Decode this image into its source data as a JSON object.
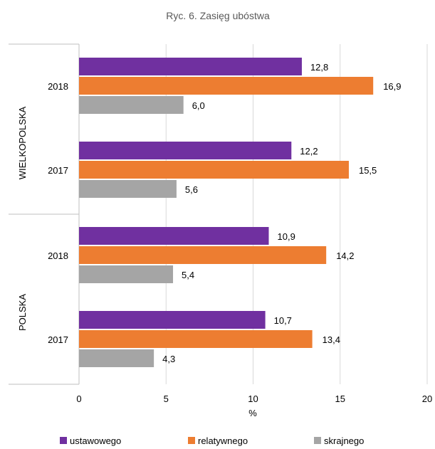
{
  "chart_data": {
    "type": "bar",
    "orientation": "horizontal",
    "title": "Ryc. 6. Zasięg ubóstwa",
    "xlabel": "%",
    "xlim": [
      0,
      20
    ],
    "xticks": [
      "0",
      "5",
      "10",
      "15",
      "20"
    ],
    "grid": true,
    "legend_position": "bottom",
    "groups": [
      {
        "region": "WIELKOPOLSKA",
        "years": [
          {
            "year": "2018",
            "values": [
              12.8,
              16.9,
              6.0
            ],
            "labels": [
              "12,8",
              "16,9",
              "6,0"
            ]
          },
          {
            "year": "2017",
            "values": [
              12.2,
              15.5,
              5.6
            ],
            "labels": [
              "12,2",
              "15,5",
              "5,6"
            ]
          }
        ]
      },
      {
        "region": "POLSKA",
        "years": [
          {
            "year": "2018",
            "values": [
              10.9,
              14.2,
              5.4
            ],
            "labels": [
              "10,9",
              "14,2",
              "5,4"
            ]
          },
          {
            "year": "2017",
            "values": [
              10.7,
              13.4,
              4.3
            ],
            "labels": [
              "10,7",
              "13,4",
              "4,3"
            ]
          }
        ]
      }
    ],
    "series": [
      {
        "name": "ustawowego",
        "color": "#7030A0"
      },
      {
        "name": "relatywnego",
        "color": "#ED7D31"
      },
      {
        "name": "skrajnego",
        "color": "#A5A5A5"
      }
    ]
  }
}
